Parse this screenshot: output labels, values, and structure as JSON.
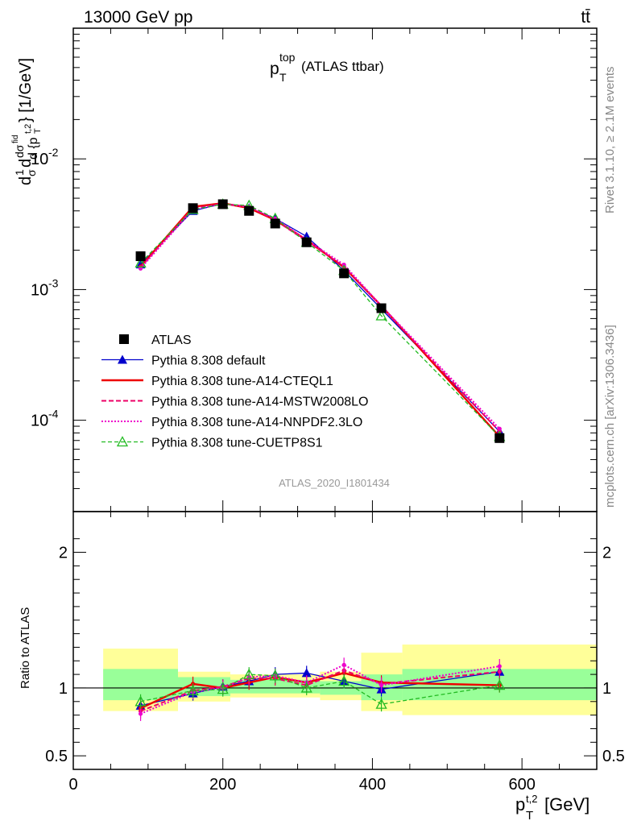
{
  "header": {
    "energy_label": "13000 GeV pp",
    "process_label": "tt̄"
  },
  "side_labels": {
    "rivet": "Rivet 3.1.10, ≥ 2.1M events",
    "mcplots": "mcplots.cern.ch [arXiv:1306.3436]"
  },
  "chart_data": [
    {
      "type": "line",
      "title": "p_T^top (ATLAS ttbar)",
      "watermark": "ATLAS_2020_I1801434",
      "ylabel": "d(1/σ)(dσ^fid / d{p_T^t,2}) [1/GeV]",
      "ylog": true,
      "xlim": [
        0,
        700
      ],
      "ylim": [
        2e-05,
        0.1
      ],
      "x": [
        90,
        160,
        200,
        235,
        270,
        312,
        362,
        412,
        570
      ],
      "series": [
        {
          "name": "ATLAS",
          "marker": "square",
          "color": "#000000",
          "values": [
            0.0018,
            0.0042,
            0.0045,
            0.004,
            0.0032,
            0.0023,
            0.00133,
            0.00072,
            7.3e-05
          ]
        },
        {
          "name": "Pythia 8.308 default",
          "marker": "triangle",
          "color": "#0000cc",
          "values": [
            0.00156,
            0.004,
            0.00455,
            0.0042,
            0.0035,
            0.00255,
            0.0014,
            0.00071,
            8.2e-05
          ]
        },
        {
          "name": "Pythia 8.308 tune-A14-CTEQL1",
          "marker": "none",
          "color": "#ee0000",
          "values": [
            0.0015,
            0.0043,
            0.00458,
            0.0042,
            0.0034,
            0.0024,
            0.00148,
            0.00075,
            7.5e-05
          ]
        },
        {
          "name": "Pythia 8.308 tune-A14-MSTW2008LO",
          "marker": "none",
          "color": "#ee0066",
          "values": [
            0.00148,
            0.0042,
            0.00455,
            0.0043,
            0.0034,
            0.00235,
            0.0015,
            0.00074,
            8.2e-05
          ]
        },
        {
          "name": "Pythia 8.308 tune-A14-NNPDF2.3LO",
          "marker": "none",
          "color": "#ee00cc",
          "values": [
            0.00145,
            0.0041,
            0.00452,
            0.0043,
            0.0035,
            0.0024,
            0.00155,
            0.00075,
            8.6e-05
          ]
        },
        {
          "name": "Pythia 8.308 tune-CUETP8S1",
          "marker": "open-triangle",
          "color": "#22bb22",
          "values": [
            0.0016,
            0.0041,
            0.0045,
            0.0044,
            0.0035,
            0.0023,
            0.0014,
            0.00063,
            7.5e-05
          ]
        }
      ]
    },
    {
      "type": "line",
      "ylabel": "Ratio to ATLAS",
      "xlabel": "p_T^t,2 [GeV]",
      "xlim": [
        0,
        700
      ],
      "ylim": [
        0.4,
        2.3
      ],
      "x": [
        90,
        160,
        200,
        235,
        270,
        312,
        362,
        412,
        570
      ],
      "bands": {
        "edges": [
          40,
          140,
          210,
          330,
          385,
          440,
          700
        ],
        "green": [
          [
            0.91,
            1.14
          ],
          [
            0.94,
            1.08
          ],
          [
            0.96,
            1.06
          ],
          [
            0.95,
            1.05
          ],
          [
            0.91,
            1.1
          ],
          [
            0.91,
            1.14
          ]
        ],
        "yellow": [
          [
            0.83,
            1.29
          ],
          [
            0.9,
            1.12
          ],
          [
            0.93,
            1.1
          ],
          [
            0.91,
            1.12
          ],
          [
            0.83,
            1.26
          ],
          [
            0.8,
            1.32
          ]
        ]
      },
      "series": [
        {
          "name": "Pythia 8.308 default",
          "color": "#0000cc",
          "values": [
            0.87,
            0.96,
            1.01,
            1.05,
            1.1,
            1.11,
            1.05,
            0.99,
            1.12
          ]
        },
        {
          "name": "Pythia 8.308 tune-A14-CTEQL1",
          "color": "#ee0000",
          "values": [
            0.85,
            1.03,
            1.0,
            1.04,
            1.08,
            1.04,
            1.11,
            1.04,
            1.02
          ]
        },
        {
          "name": "Pythia 8.308 tune-A14-MSTW2008LO",
          "color": "#ee0066",
          "values": [
            0.83,
            0.98,
            1.01,
            1.07,
            1.07,
            1.02,
            1.13,
            1.03,
            1.12
          ]
        },
        {
          "name": "Pythia 8.308 tune-A14-NNPDF2.3LO",
          "color": "#ee00cc",
          "values": [
            0.81,
            0.97,
            1.0,
            1.08,
            1.09,
            1.04,
            1.17,
            1.02,
            1.16
          ]
        },
        {
          "name": "Pythia 8.308 tune-CUETP8S1",
          "color": "#22bb22",
          "values": [
            0.9,
            0.98,
            0.99,
            1.1,
            1.09,
            1.0,
            1.05,
            0.88,
            1.02
          ]
        }
      ]
    }
  ]
}
